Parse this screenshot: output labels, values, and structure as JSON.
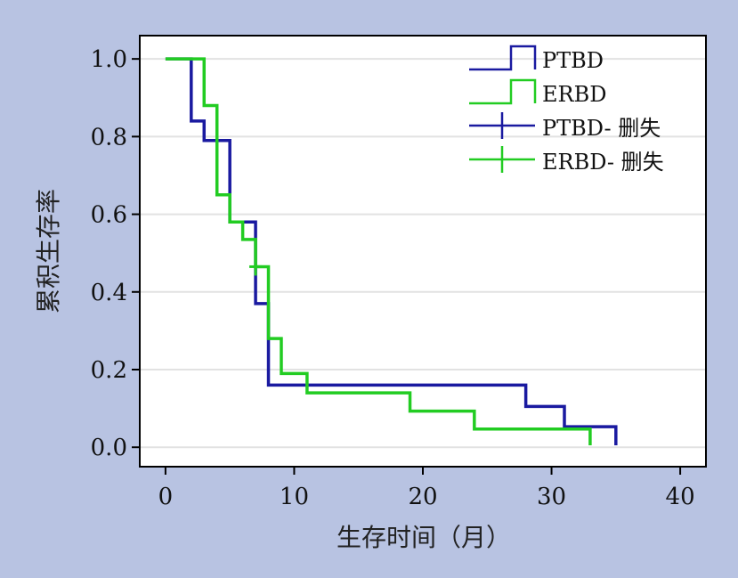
{
  "chart_data": {
    "type": "line",
    "subtype": "kaplan-meier-step",
    "xlabel": "生存时间（月）",
    "ylabel": "累积生存率",
    "xlim": [
      -2,
      42
    ],
    "ylim": [
      -0.05,
      1.06
    ],
    "xticks": [
      0,
      10,
      20,
      30,
      40
    ],
    "yticks": [
      0.0,
      0.2,
      0.4,
      0.6,
      0.8,
      1.0
    ],
    "yticks_labels": [
      "0.0",
      "0.2",
      "0.4",
      "0.6",
      "0.8",
      "1.0"
    ],
    "grid": "horizontal",
    "legend_position": "top-right",
    "series": [
      {
        "name": "PTBD",
        "color": "#1a1aa0",
        "steps": [
          [
            0,
            1.0
          ],
          [
            2,
            0.84
          ],
          [
            3,
            0.79
          ],
          [
            5,
            0.58
          ],
          [
            7,
            0.37
          ],
          [
            8,
            0.16
          ],
          [
            28,
            0.105
          ],
          [
            31,
            0.053
          ],
          [
            35,
            0.053
          ]
        ],
        "end_drop": [
          35,
          0.005
        ],
        "censored": []
      },
      {
        "name": "ERBD",
        "color": "#22cc22",
        "steps": [
          [
            0,
            1.0
          ],
          [
            3,
            0.88
          ],
          [
            4,
            0.65
          ],
          [
            5,
            0.58
          ],
          [
            6,
            0.535
          ],
          [
            7,
            0.465
          ],
          [
            8,
            0.28
          ],
          [
            9,
            0.19
          ],
          [
            11,
            0.14
          ],
          [
            19,
            0.093
          ],
          [
            24,
            0.047
          ],
          [
            33,
            0.047
          ]
        ],
        "end_drop": [
          33,
          0.005
        ],
        "censored": [
          [
            7,
            0.465
          ]
        ]
      }
    ],
    "legend": [
      {
        "label": "PTBD",
        "kind": "step",
        "color": "#1a1aa0"
      },
      {
        "label": "ERBD",
        "kind": "step",
        "color": "#22cc22"
      },
      {
        "label": "PTBD- 删失",
        "kind": "censor",
        "color": "#1a1aa0"
      },
      {
        "label": "ERBD- 删失",
        "kind": "censor",
        "color": "#22cc22"
      }
    ]
  }
}
